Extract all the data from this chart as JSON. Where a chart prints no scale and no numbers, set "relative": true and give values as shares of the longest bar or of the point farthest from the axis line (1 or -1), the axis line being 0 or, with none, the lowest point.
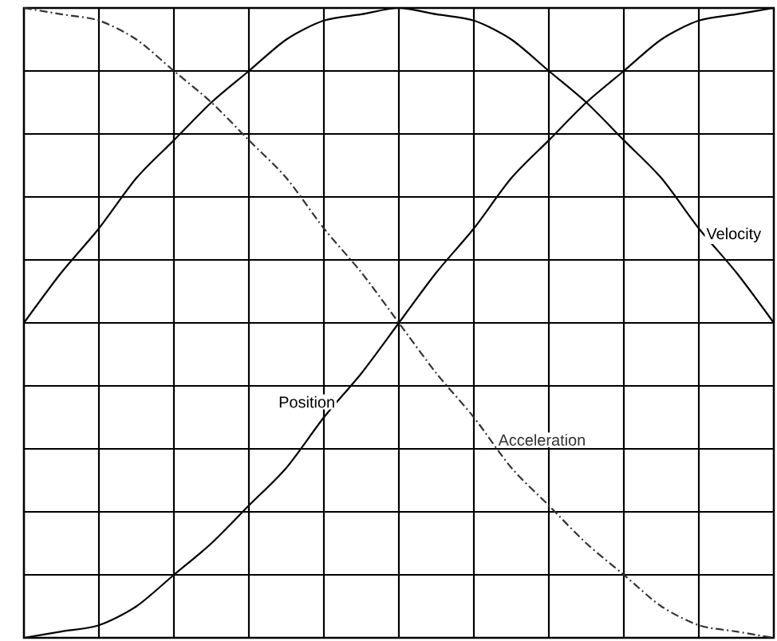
{
  "chart_data": {
    "type": "line",
    "relative": true,
    "grid": true,
    "legend": false,
    "marker": "none",
    "categories": [
      null,
      null,
      null,
      null,
      null,
      null,
      null,
      null,
      null,
      null,
      null,
      null,
      null,
      null,
      null,
      null,
      null,
      null,
      null,
      null,
      null
    ],
    "series": [
      {
        "name": "Position",
        "color": "#000000",
        "line_style": "solid",
        "values": [
          0,
          0.01,
          0.02,
          0.05,
          0.1,
          0.15,
          0.21,
          0.27,
          0.35,
          0.42,
          0.5,
          0.58,
          0.65,
          0.73,
          0.79,
          0.85,
          0.9,
          0.95,
          0.98,
          0.99,
          1
        ]
      },
      {
        "name": "Velocity",
        "color": "#000000",
        "line_style": "solid",
        "values": [
          0.5,
          0.58,
          0.65,
          0.73,
          0.79,
          0.85,
          0.9,
          0.95,
          0.98,
          0.99,
          1,
          0.99,
          0.98,
          0.95,
          0.9,
          0.85,
          0.79,
          0.73,
          0.65,
          0.58,
          0.5
        ]
      },
      {
        "name": "Acceleration",
        "color": "#333333",
        "line_style": "dashed",
        "values": [
          1,
          0.99,
          0.98,
          0.95,
          0.9,
          0.85,
          0.79,
          0.73,
          0.65,
          0.58,
          0.5,
          0.42,
          0.35,
          0.27,
          0.21,
          0.15,
          0.1,
          0.05,
          0.02,
          0.01,
          0
        ]
      }
    ]
  }
}
